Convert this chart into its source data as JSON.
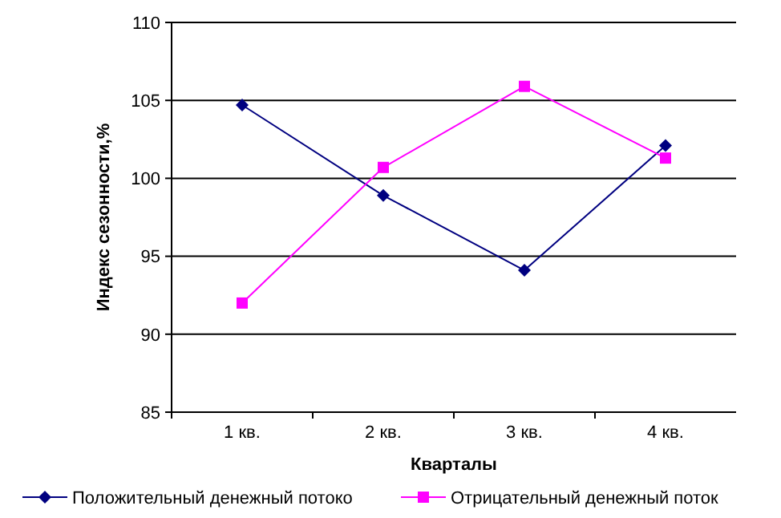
{
  "chart_data": {
    "type": "line",
    "xlabel": "Кварталы",
    "ylabel": "Индекс сезонности,%",
    "categories": [
      "1 кв.",
      "2 кв.",
      "3 кв.",
      "4 кв."
    ],
    "series": [
      {
        "name": "Положительный денежный потоко",
        "color": "#000080",
        "marker": "diamond",
        "values": [
          104.7,
          98.9,
          94.1,
          102.1
        ]
      },
      {
        "name": "Отрицательный денежный поток",
        "color": "#ff00ff",
        "marker": "square",
        "values": [
          92.0,
          100.7,
          105.9,
          101.3
        ]
      }
    ],
    "ylim": [
      85,
      110
    ],
    "yticks": [
      85,
      90,
      95,
      100,
      105,
      110
    ],
    "grid": "y",
    "legend": "bottom"
  }
}
